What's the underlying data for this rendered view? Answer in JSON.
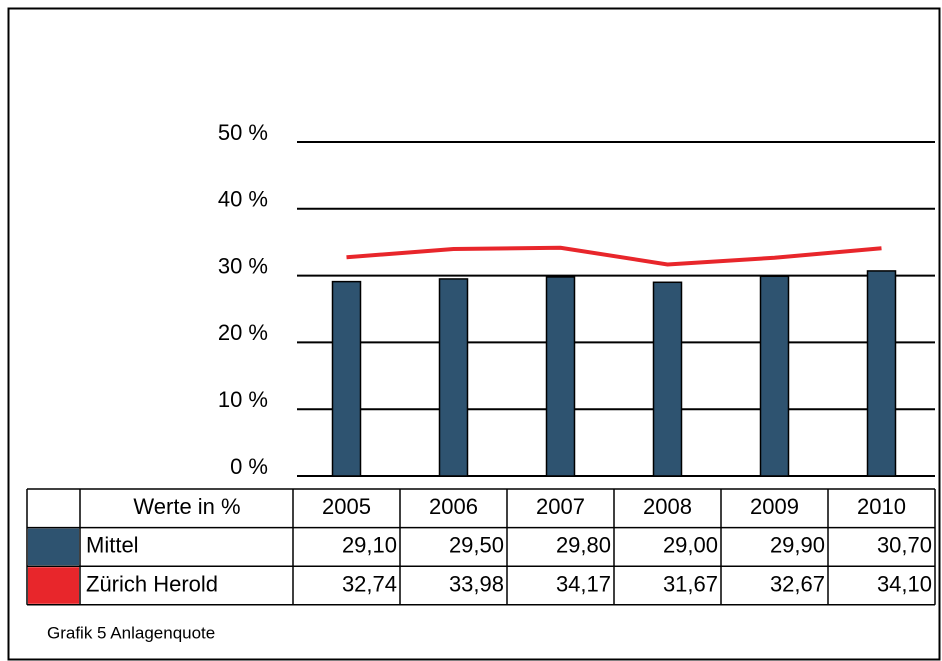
{
  "chart_data": {
    "type": "bar",
    "caption": "Grafik 5 Anlagenquote",
    "table_header": "Werte in %",
    "categories": [
      "2005",
      "2006",
      "2007",
      "2008",
      "2009",
      "2010"
    ],
    "series": [
      {
        "name": "Mittel",
        "type": "bar",
        "color": "#2e5370",
        "values": [
          29.1,
          29.5,
          29.8,
          29.0,
          29.9,
          30.7
        ],
        "value_labels": [
          "29,10",
          "29,50",
          "29,80",
          "29,00",
          "29,90",
          "30,70"
        ]
      },
      {
        "name": "Zürich Herold",
        "type": "line",
        "color": "#e8262b",
        "values": [
          32.74,
          33.98,
          34.17,
          31.67,
          32.67,
          34.1
        ],
        "value_labels": [
          "32,74",
          "33,98",
          "34,17",
          "31,67",
          "32,67",
          "34,10"
        ]
      }
    ],
    "ylim": [
      0,
      50
    ],
    "yticks": [
      {
        "value": 0,
        "label": "0 %"
      },
      {
        "value": 10,
        "label": "10 %"
      },
      {
        "value": 20,
        "label": "20 %"
      },
      {
        "value": 30,
        "label": "30 %"
      },
      {
        "value": 40,
        "label": "40 %"
      },
      {
        "value": 50,
        "label": "50 %"
      }
    ],
    "grid": true
  }
}
